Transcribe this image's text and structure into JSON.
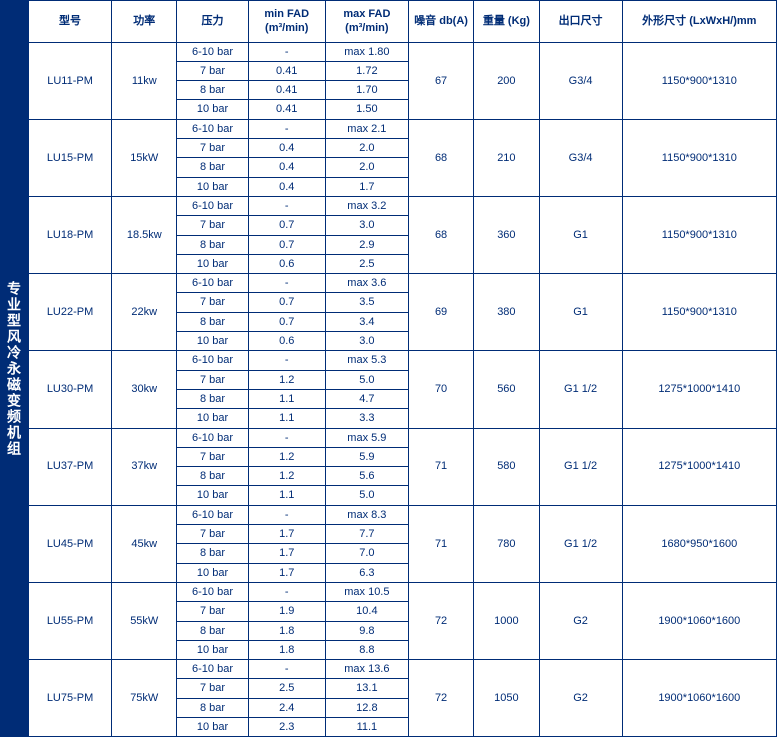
{
  "sidebarTitle": "专业型风冷永磁变频机组",
  "headers": {
    "model": "型号",
    "power": "功率",
    "pressure": "压力",
    "minfad": "min FAD\n(m³/min)",
    "maxfad": "max FAD\n(m³/min)",
    "noise": "噪音\ndb(A)",
    "weight": "重量\n(Kg)",
    "outlet": "出口尺寸",
    "dims": "外形尺寸\n(LxWxH/)mm"
  },
  "models": [
    {
      "model": "LU11-PM",
      "power": "11kw",
      "noise": "67",
      "weight": "200",
      "outlet": "G3/4",
      "dims": "1150*900*1310",
      "rows": [
        {
          "p": "6-10 bar",
          "min": "-",
          "max": "max 1.80"
        },
        {
          "p": "7 bar",
          "min": "0.41",
          "max": "1.72"
        },
        {
          "p": "8 bar",
          "min": "0.41",
          "max": "1.70"
        },
        {
          "p": "10 bar",
          "min": "0.41",
          "max": "1.50"
        }
      ]
    },
    {
      "model": "LU15-PM",
      "power": "15kW",
      "noise": "68",
      "weight": "210",
      "outlet": "G3/4",
      "dims": "1150*900*1310",
      "rows": [
        {
          "p": "6-10 bar",
          "min": "-",
          "max": "max 2.1"
        },
        {
          "p": "7 bar",
          "min": "0.4",
          "max": "2.0"
        },
        {
          "p": "8 bar",
          "min": "0.4",
          "max": "2.0"
        },
        {
          "p": "10 bar",
          "min": "0.4",
          "max": "1.7"
        }
      ]
    },
    {
      "model": "LU18-PM",
      "power": "18.5kw",
      "noise": "68",
      "weight": "360",
      "outlet": "G1",
      "dims": "1150*900*1310",
      "rows": [
        {
          "p": "6-10 bar",
          "min": "-",
          "max": "max 3.2"
        },
        {
          "p": "7 bar",
          "min": "0.7",
          "max": "3.0"
        },
        {
          "p": "8 bar",
          "min": "0.7",
          "max": "2.9"
        },
        {
          "p": "10 bar",
          "min": "0.6",
          "max": "2.5"
        }
      ]
    },
    {
      "model": "LU22-PM",
      "power": "22kw",
      "noise": "69",
      "weight": "380",
      "outlet": "G1",
      "dims": "1150*900*1310",
      "rows": [
        {
          "p": "6-10 bar",
          "min": "-",
          "max": "max 3.6"
        },
        {
          "p": "7 bar",
          "min": "0.7",
          "max": "3.5"
        },
        {
          "p": "8 bar",
          "min": "0.7",
          "max": "3.4"
        },
        {
          "p": "10 bar",
          "min": "0.6",
          "max": "3.0"
        }
      ]
    },
    {
      "model": "LU30-PM",
      "power": "30kw",
      "noise": "70",
      "weight": "560",
      "outlet": "G1 1/2",
      "dims": "1275*1000*1410",
      "rows": [
        {
          "p": "6-10 bar",
          "min": "-",
          "max": "max 5.3"
        },
        {
          "p": "7 bar",
          "min": "1.2",
          "max": "5.0"
        },
        {
          "p": "8 bar",
          "min": "1.1",
          "max": "4.7"
        },
        {
          "p": "10 bar",
          "min": "1.1",
          "max": "3.3"
        }
      ]
    },
    {
      "model": "LU37-PM",
      "power": "37kw",
      "noise": "71",
      "weight": "580",
      "outlet": "G1 1/2",
      "dims": "1275*1000*1410",
      "rows": [
        {
          "p": "6-10 bar",
          "min": "-",
          "max": "max 5.9"
        },
        {
          "p": "7 bar",
          "min": "1.2",
          "max": "5.9"
        },
        {
          "p": "8 bar",
          "min": "1.2",
          "max": "5.6"
        },
        {
          "p": "10 bar",
          "min": "1.1",
          "max": "5.0"
        }
      ]
    },
    {
      "model": "LU45-PM",
      "power": "45kw",
      "noise": "71",
      "weight": "780",
      "outlet": "G1 1/2",
      "dims": "1680*950*1600",
      "rows": [
        {
          "p": "6-10 bar",
          "min": "-",
          "max": "max 8.3"
        },
        {
          "p": "7 bar",
          "min": "1.7",
          "max": "7.7"
        },
        {
          "p": "8 bar",
          "min": "1.7",
          "max": "7.0"
        },
        {
          "p": "10 bar",
          "min": "1.7",
          "max": "6.3"
        }
      ]
    },
    {
      "model": "LU55-PM",
      "power": "55kW",
      "noise": "72",
      "weight": "1000",
      "outlet": "G2",
      "dims": "1900*1060*1600",
      "rows": [
        {
          "p": "6-10 bar",
          "min": "-",
          "max": "max 10.5"
        },
        {
          "p": "7 bar",
          "min": "1.9",
          "max": "10.4"
        },
        {
          "p": "8 bar",
          "min": "1.8",
          "max": "9.8"
        },
        {
          "p": "10 bar",
          "min": "1.8",
          "max": "8.8"
        }
      ]
    },
    {
      "model": "LU75-PM",
      "power": "75kW",
      "noise": "72",
      "weight": "1050",
      "outlet": "G2",
      "dims": "1900*1060*1600",
      "rows": [
        {
          "p": "6-10 bar",
          "min": "-",
          "max": "max 13.6"
        },
        {
          "p": "7 bar",
          "min": "2.5",
          "max": "13.1"
        },
        {
          "p": "8 bar",
          "min": "2.4",
          "max": "12.8"
        },
        {
          "p": "10 bar",
          "min": "2.3",
          "max": "11.1"
        }
      ]
    }
  ]
}
